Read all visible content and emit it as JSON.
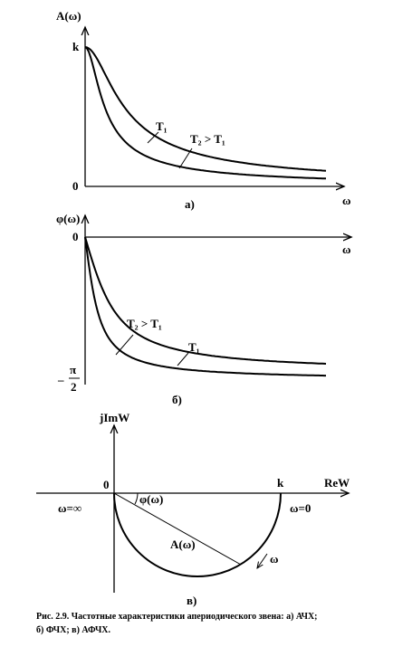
{
  "panel_a": {
    "y_label": "A(ω)",
    "k": "k",
    "zero": "0",
    "curve_t1": "T₁",
    "curve_t2": "T₂ > T₁",
    "x_label": "ω",
    "tag": "а)"
  },
  "panel_b": {
    "y_label": "φ(ω)",
    "zero": "0",
    "x_label": "ω",
    "curve_t2": "T₂ > T₁",
    "curve_t1": "T₁",
    "minus": "–",
    "pi": "π",
    "two": "2",
    "tag": "б)"
  },
  "panel_c": {
    "y_label": "jImW",
    "zero": "0",
    "x_label": "ReW",
    "k": "k",
    "omega_inf": "ω=∞",
    "omega_zero": "ω=0",
    "phase": "φ(ω)",
    "amplitude": "A(ω)",
    "omega": "ω",
    "tag": "в)"
  },
  "caption": {
    "line1": "Рис. 2.9. Частотные характеристики апериодического звена: а) АЧХ;",
    "line2": "б) ФЧХ; в) АФЧХ."
  }
}
